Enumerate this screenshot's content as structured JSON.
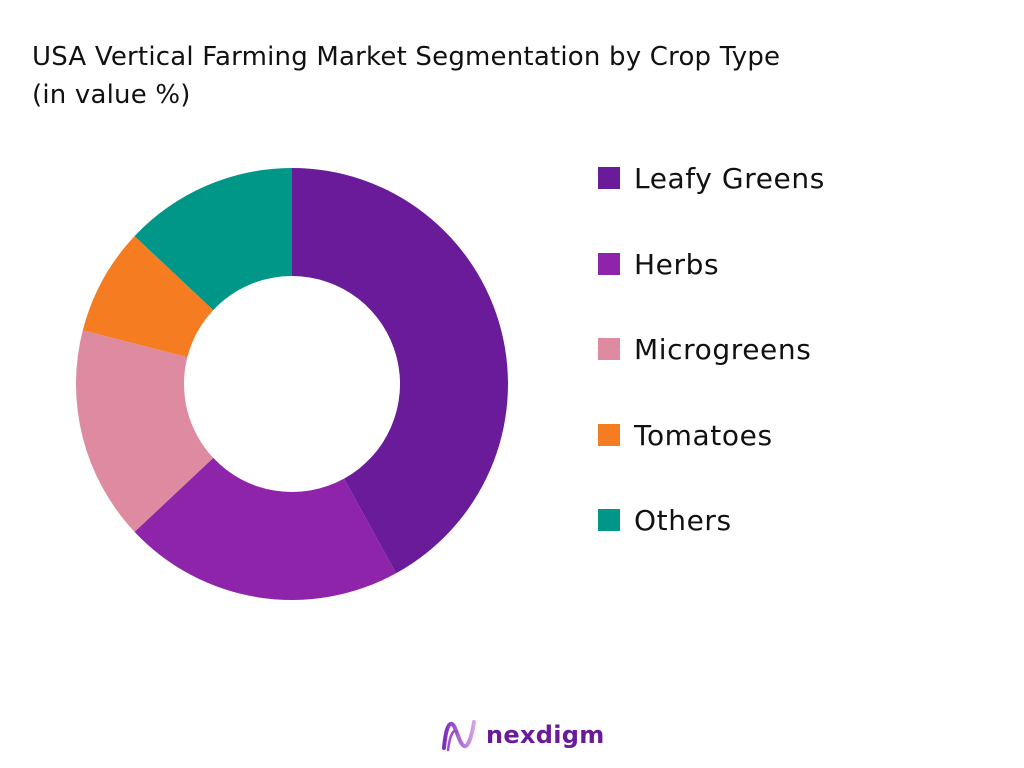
{
  "chart_data": {
    "type": "pie",
    "donut": true,
    "title": "USA Vertical Farming Market Segmentation by Crop Type",
    "subtitle": "(in value %)",
    "legend_position": "right",
    "start_angle_deg": 0,
    "direction": "clockwise",
    "series": [
      {
        "name": "Leafy Greens",
        "value": 42,
        "color": "#6a1b9a"
      },
      {
        "name": "Herbs",
        "value": 21,
        "color": "#8e24aa"
      },
      {
        "name": "Microgreens",
        "value": 16,
        "color": "#de8aa0"
      },
      {
        "name": "Tomatoes",
        "value": 8,
        "color": "#f57c20"
      },
      {
        "name": "Others",
        "value": 13,
        "color": "#009688"
      }
    ]
  },
  "branding": {
    "logo_icon": "nexdigm-logo-icon",
    "name": "nexdigm",
    "color": "#6a1b9a"
  }
}
